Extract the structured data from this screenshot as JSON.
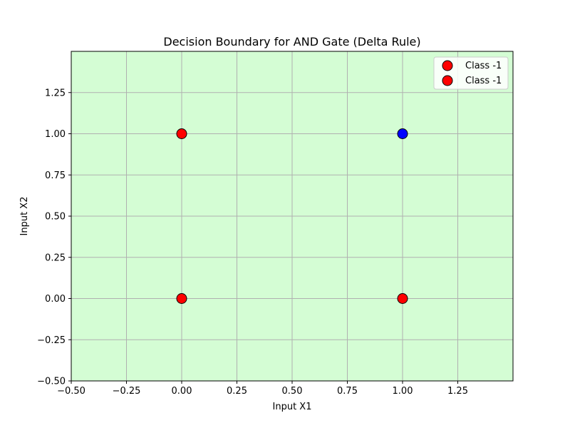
{
  "chart_data": {
    "type": "scatter",
    "title": "Decision Boundary for AND Gate (Delta Rule)",
    "xlabel": "Input X1",
    "ylabel": "Input X2",
    "xlim": [
      -0.5,
      1.5
    ],
    "ylim": [
      -0.5,
      1.5
    ],
    "xticks": [
      -0.5,
      -0.25,
      0.0,
      0.25,
      0.5,
      0.75,
      1.0,
      1.25
    ],
    "xtick_labels": [
      "−0.50",
      "−0.25",
      "0.00",
      "0.25",
      "0.50",
      "0.75",
      "1.00",
      "1.25"
    ],
    "yticks": [
      -0.5,
      -0.25,
      0.0,
      0.25,
      0.5,
      0.75,
      1.0,
      1.25
    ],
    "ytick_labels": [
      "−0.50",
      "−0.25",
      "0.00",
      "0.25",
      "0.50",
      "0.75",
      "1.00",
      "1.25"
    ],
    "grid": true,
    "background_region_color": "#d4fdd4",
    "legend_position": "top-right",
    "points": [
      {
        "x": 0,
        "y": 0,
        "color": "#ff0000"
      },
      {
        "x": 0,
        "y": 1,
        "color": "#ff0000"
      },
      {
        "x": 1,
        "y": 0,
        "color": "#ff0000"
      },
      {
        "x": 1,
        "y": 1,
        "color": "#0000ff"
      }
    ],
    "legend": [
      {
        "label": "Class -1",
        "color": "#ff0000"
      },
      {
        "label": "Class -1",
        "color": "#ff0000"
      }
    ]
  }
}
